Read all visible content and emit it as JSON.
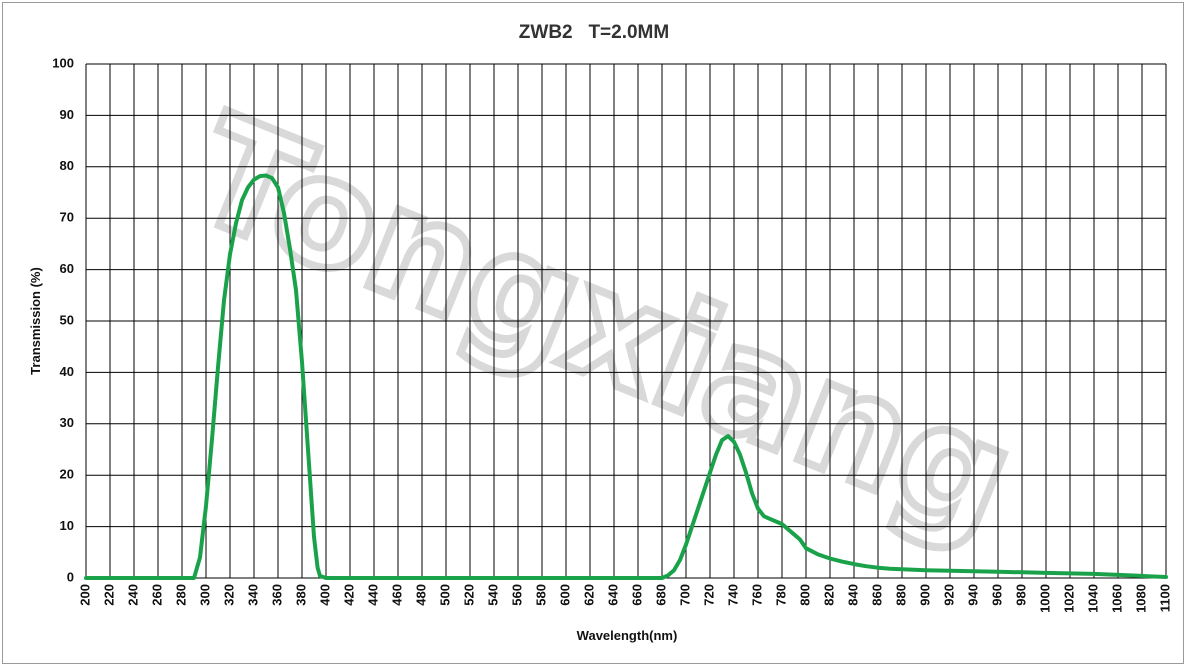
{
  "chart_data": {
    "type": "line",
    "title": "ZWB2   T=2.0MM",
    "xlabel": "Wavelength(nm)",
    "ylabel": "Transmission (%)",
    "xlim": [
      200,
      1100
    ],
    "ylim": [
      0,
      100
    ],
    "x_ticks": [
      200,
      220,
      240,
      260,
      280,
      300,
      320,
      340,
      360,
      380,
      400,
      420,
      440,
      460,
      480,
      500,
      520,
      540,
      560,
      580,
      600,
      620,
      640,
      660,
      680,
      700,
      720,
      740,
      760,
      780,
      800,
      820,
      840,
      860,
      880,
      900,
      920,
      940,
      960,
      980,
      1000,
      1020,
      1040,
      1060,
      1080,
      1100
    ],
    "y_ticks": [
      0,
      10,
      20,
      30,
      40,
      50,
      60,
      70,
      80,
      90,
      100
    ],
    "grid": true,
    "line_color": "#1aa24a",
    "watermark": "Tongxiang",
    "series": [
      {
        "x": [
          200,
          250,
          285,
          290,
          295,
          300,
          305,
          310,
          315,
          320,
          325,
          330,
          335,
          340,
          345,
          350,
          355,
          360,
          365,
          370,
          375,
          380,
          385,
          390,
          393,
          395,
          400,
          450,
          500,
          550,
          600,
          650,
          680,
          685,
          690,
          695,
          700,
          705,
          710,
          715,
          720,
          725,
          730,
          735,
          740,
          745,
          750,
          755,
          760,
          765,
          770,
          775,
          780,
          785,
          790,
          795,
          800,
          810,
          820,
          830,
          840,
          850,
          860,
          870,
          880,
          890,
          900,
          920,
          940,
          960,
          980,
          1000,
          1020,
          1040,
          1060,
          1080,
          1090,
          1100
        ],
        "y": [
          0,
          0,
          0,
          0,
          4,
          14,
          27,
          41,
          54,
          63,
          69,
          73.5,
          76,
          77.5,
          78.2,
          78.3,
          77.8,
          76,
          71,
          64,
          56,
          42,
          25,
          8,
          2,
          0.4,
          0,
          0,
          0,
          0,
          0,
          0,
          0,
          0.5,
          1.5,
          3.5,
          6.5,
          10,
          13.5,
          17,
          20.5,
          24,
          26.8,
          27.6,
          26.5,
          24,
          20.5,
          16.5,
          13.5,
          12,
          11.5,
          11,
          10.5,
          9.5,
          8.5,
          7.5,
          5.8,
          4.6,
          3.8,
          3.2,
          2.7,
          2.3,
          2,
          1.8,
          1.7,
          1.6,
          1.5,
          1.4,
          1.3,
          1.2,
          1.1,
          1,
          0.9,
          0.8,
          0.6,
          0.4,
          0.3,
          0.2
        ]
      }
    ]
  }
}
